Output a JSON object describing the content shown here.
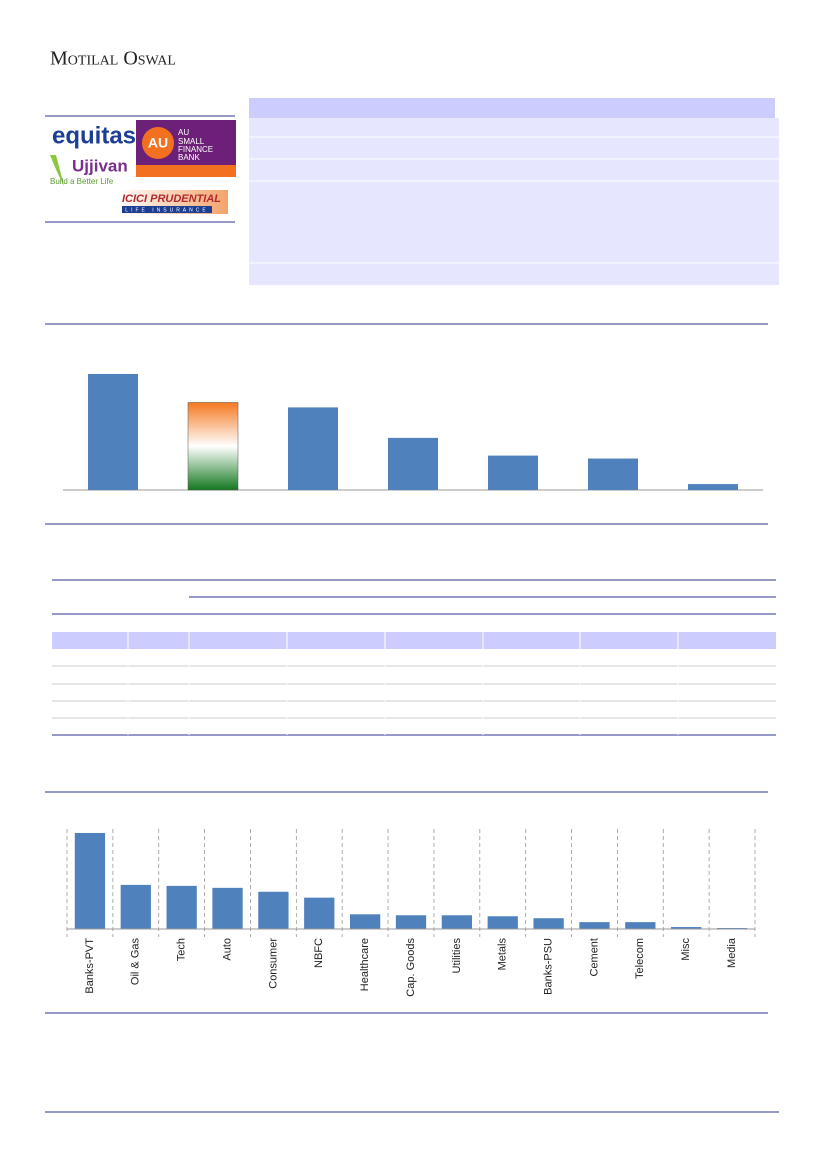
{
  "header": {
    "brand": "Motilal Oswal"
  },
  "logos": {
    "equitas": "equitas",
    "au_mark": "AU",
    "au_lines": [
      "SMALL",
      "FINANCE",
      "BANK"
    ],
    "ujjivan": "Ujjivan",
    "ujjivan_tagline": "Build a Better Life",
    "icici": "ICICI PRUDENTIAL",
    "icici_sub": "LIFE INSURANCE"
  },
  "chart_data": [
    {
      "type": "bar",
      "values": [
        118,
        89,
        84,
        53,
        35,
        32,
        6
      ],
      "colors": [
        "#4f81bd",
        "tricolor",
        "#4f81bd",
        "#4f81bd",
        "#4f81bd",
        "#4f81bd",
        "#4f81bd"
      ],
      "ylim": [
        0,
        120
      ]
    },
    {
      "type": "bar",
      "categories": [
        "Banks-PVT",
        "Oil & Gas",
        "Tech",
        "Auto",
        "Consumer",
        "NBFC",
        "Healthcare",
        "Cap. Goods",
        "Utilities",
        "Metals",
        "Banks-PSU",
        "Cement",
        "Telecom",
        "Misc",
        "Media"
      ],
      "values": [
        98,
        45,
        44,
        42,
        38,
        32,
        15,
        14,
        14,
        13,
        11,
        7,
        7,
        2,
        1
      ],
      "color": "#4f81bd",
      "ylim": [
        0,
        100
      ]
    }
  ]
}
